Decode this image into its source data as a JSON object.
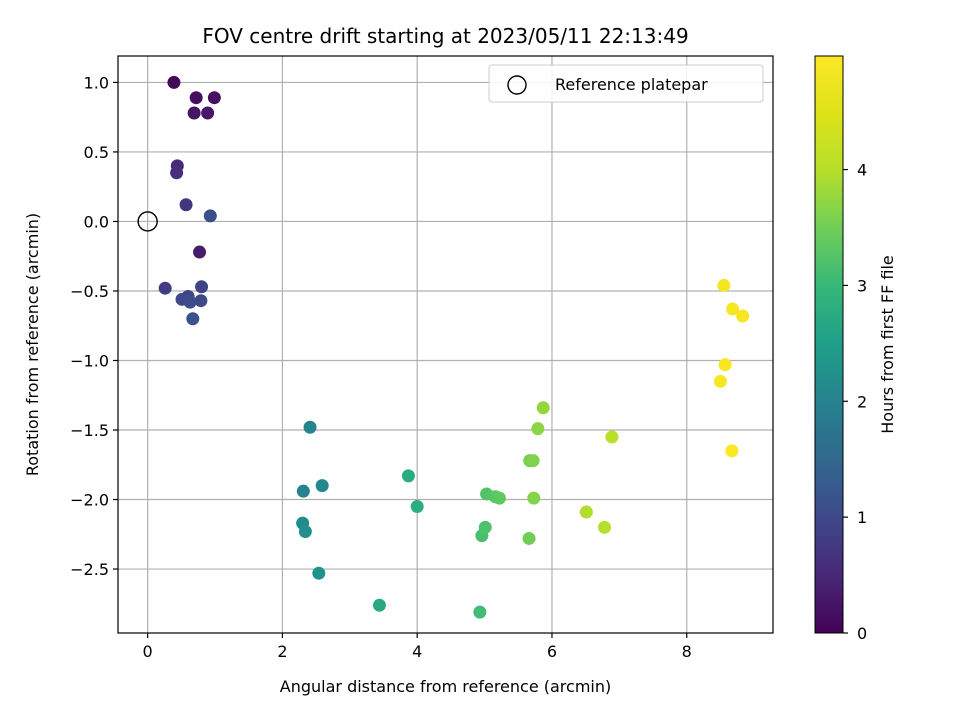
{
  "chart_data": {
    "type": "scatter",
    "title": "FOV centre drift starting at 2023/05/11 22:13:49",
    "xlabel": "Angular distance from reference (arcmin)",
    "ylabel": "Rotation from reference (arcmin)",
    "xlim": [
      -0.44,
      9.28
    ],
    "ylim": [
      -2.96,
      1.19
    ],
    "x_ticks": [
      0,
      2,
      4,
      6,
      8
    ],
    "x_tick_labels": [
      "0",
      "2",
      "4",
      "6",
      "8"
    ],
    "y_ticks": [
      1.0,
      0.5,
      0.0,
      -0.5,
      -1.0,
      -1.5,
      -2.0,
      -2.5
    ],
    "y_tick_labels": [
      "1.0",
      "0.5",
      "0.0",
      "−0.5",
      "−1.0",
      "−1.5",
      "−2.0",
      "−2.5"
    ],
    "grid": true,
    "legend": {
      "placement": "top-right",
      "entries": [
        {
          "label": "Reference platepar",
          "marker": "open-circle",
          "color": "#000000"
        }
      ]
    },
    "reference_point": {
      "x": 0.0,
      "y": 0.0
    },
    "colorbar": {
      "label": "Hours from first FF file",
      "colormap": "viridis",
      "range": [
        0,
        4.98
      ],
      "ticks": [
        0,
        1,
        2,
        3,
        4
      ],
      "tick_labels": [
        "0",
        "1",
        "2",
        "3",
        "4"
      ]
    },
    "points": [
      {
        "x": 0.39,
        "y": 1.0,
        "c": 0.1
      },
      {
        "x": 0.72,
        "y": 0.89,
        "c": 0.15
      },
      {
        "x": 0.99,
        "y": 0.89,
        "c": 0.2
      },
      {
        "x": 0.69,
        "y": 0.78,
        "c": 0.25
      },
      {
        "x": 0.89,
        "y": 0.78,
        "c": 0.3
      },
      {
        "x": 0.44,
        "y": 0.4,
        "c": 0.55
      },
      {
        "x": 0.43,
        "y": 0.35,
        "c": 0.6
      },
      {
        "x": 0.57,
        "y": 0.12,
        "c": 0.7
      },
      {
        "x": 0.93,
        "y": 0.04,
        "c": 1.1
      },
      {
        "x": 0.77,
        "y": -0.22,
        "c": 0.35
      },
      {
        "x": 0.26,
        "y": -0.48,
        "c": 0.8
      },
      {
        "x": 0.8,
        "y": -0.47,
        "c": 0.9
      },
      {
        "x": 0.6,
        "y": -0.54,
        "c": 0.95
      },
      {
        "x": 0.51,
        "y": -0.56,
        "c": 1.0
      },
      {
        "x": 0.63,
        "y": -0.58,
        "c": 1.05
      },
      {
        "x": 0.79,
        "y": -0.57,
        "c": 1.0
      },
      {
        "x": 0.67,
        "y": -0.7,
        "c": 1.15
      },
      {
        "x": 2.41,
        "y": -1.48,
        "c": 2.05
      },
      {
        "x": 2.31,
        "y": -1.94,
        "c": 2.0
      },
      {
        "x": 2.59,
        "y": -1.9,
        "c": 2.1
      },
      {
        "x": 2.3,
        "y": -2.17,
        "c": 2.15
      },
      {
        "x": 2.34,
        "y": -2.23,
        "c": 2.2
      },
      {
        "x": 2.54,
        "y": -2.53,
        "c": 2.3
      },
      {
        "x": 3.44,
        "y": -2.76,
        "c": 2.7
      },
      {
        "x": 3.87,
        "y": -1.83,
        "c": 2.75
      },
      {
        "x": 4.0,
        "y": -2.05,
        "c": 2.8
      },
      {
        "x": 4.93,
        "y": -2.81,
        "c": 3.1
      },
      {
        "x": 4.96,
        "y": -2.26,
        "c": 3.15
      },
      {
        "x": 5.01,
        "y": -2.2,
        "c": 3.2
      },
      {
        "x": 5.03,
        "y": -1.96,
        "c": 3.25
      },
      {
        "x": 5.16,
        "y": -1.98,
        "c": 3.3
      },
      {
        "x": 5.22,
        "y": -1.99,
        "c": 3.35
      },
      {
        "x": 5.66,
        "y": -2.28,
        "c": 3.5
      },
      {
        "x": 5.67,
        "y": -1.72,
        "c": 3.55
      },
      {
        "x": 5.72,
        "y": -1.72,
        "c": 3.6
      },
      {
        "x": 5.73,
        "y": -1.99,
        "c": 3.65
      },
      {
        "x": 5.79,
        "y": -1.49,
        "c": 3.7
      },
      {
        "x": 5.87,
        "y": -1.34,
        "c": 3.75
      },
      {
        "x": 6.51,
        "y": -2.09,
        "c": 3.95
      },
      {
        "x": 6.78,
        "y": -2.2,
        "c": 4.0
      },
      {
        "x": 6.89,
        "y": -1.55,
        "c": 4.05
      },
      {
        "x": 8.55,
        "y": -0.46,
        "c": 4.85
      },
      {
        "x": 8.68,
        "y": -0.63,
        "c": 4.88
      },
      {
        "x": 8.83,
        "y": -0.68,
        "c": 4.9
      },
      {
        "x": 8.57,
        "y": -1.03,
        "c": 4.92
      },
      {
        "x": 8.5,
        "y": -1.15,
        "c": 4.94
      },
      {
        "x": 8.67,
        "y": -1.65,
        "c": 4.96
      }
    ]
  }
}
